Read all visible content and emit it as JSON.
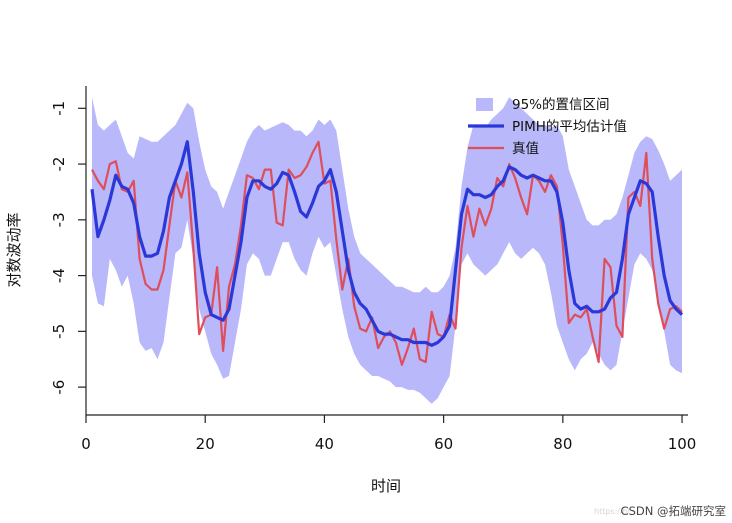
{
  "chart_data": {
    "type": "line",
    "xlabel": "时间",
    "ylabel": "对数波动率",
    "xlim": [
      0,
      101
    ],
    "ylim": [
      -6.5,
      -0.6
    ],
    "x_ticks": [
      0,
      20,
      40,
      60,
      80,
      100
    ],
    "y_ticks": [
      -1,
      -2,
      -3,
      -4,
      -5,
      -6
    ],
    "legend": {
      "position": "top-right",
      "entries": [
        "95%的置信区间",
        "PIMH的平均估计值",
        "真值"
      ]
    },
    "grid": false,
    "colors": {
      "band": "#b8b8fb",
      "mean": "#2b38d8",
      "truth": "#df4e5b"
    },
    "x": [
      1,
      2,
      3,
      4,
      5,
      6,
      7,
      8,
      9,
      10,
      11,
      12,
      13,
      14,
      15,
      16,
      17,
      18,
      19,
      20,
      21,
      22,
      23,
      24,
      25,
      26,
      27,
      28,
      29,
      30,
      31,
      32,
      33,
      34,
      35,
      36,
      37,
      38,
      39,
      40,
      41,
      42,
      43,
      44,
      45,
      46,
      47,
      48,
      49,
      50,
      51,
      52,
      53,
      54,
      55,
      56,
      57,
      58,
      59,
      60,
      61,
      62,
      63,
      64,
      65,
      66,
      67,
      68,
      69,
      70,
      71,
      72,
      73,
      74,
      75,
      76,
      77,
      78,
      79,
      80,
      81,
      82,
      83,
      84,
      85,
      86,
      87,
      88,
      89,
      90,
      91,
      92,
      93,
      94,
      95,
      96,
      97,
      98,
      99,
      100
    ],
    "series": [
      {
        "name": "95%的置信区间",
        "type": "band",
        "upper": [
          -0.8,
          -1.3,
          -1.4,
          -1.3,
          -1.2,
          -1.5,
          -1.8,
          -1.9,
          -1.5,
          -1.55,
          -1.6,
          -1.6,
          -1.5,
          -1.4,
          -1.3,
          -1.1,
          -0.9,
          -1.0,
          -1.6,
          -2.1,
          -2.4,
          -2.5,
          -2.8,
          -2.5,
          -2.2,
          -1.9,
          -1.6,
          -1.4,
          -1.3,
          -1.4,
          -1.35,
          -1.3,
          -1.25,
          -1.3,
          -1.4,
          -1.4,
          -1.5,
          -1.4,
          -1.2,
          -1.3,
          -1.2,
          -1.4,
          -2.1,
          -2.8,
          -3.3,
          -3.6,
          -3.7,
          -3.8,
          -3.9,
          -4.0,
          -4.1,
          -4.2,
          -4.2,
          -4.25,
          -4.3,
          -4.3,
          -4.2,
          -4.3,
          -4.3,
          -4.2,
          -4.0,
          -3.5,
          -2.4,
          -1.7,
          -1.3,
          -1.3,
          -1.35,
          -1.2,
          -1.1,
          -1.0,
          -0.8,
          -0.9,
          -1.0,
          -1.1,
          -1.2,
          -1.3,
          -1.3,
          -1.35,
          -1.3,
          -1.5,
          -2.1,
          -2.4,
          -2.7,
          -3.0,
          -3.1,
          -3.1,
          -3.0,
          -3.0,
          -2.9,
          -2.6,
          -2.2,
          -1.8,
          -1.6,
          -1.5,
          -1.55,
          -1.75,
          -2.0,
          -2.3,
          -2.2,
          -2.1
        ],
        "lower": [
          -4.0,
          -4.5,
          -4.55,
          -3.7,
          -3.9,
          -4.2,
          -4.0,
          -4.5,
          -5.2,
          -5.35,
          -5.3,
          -5.5,
          -5.2,
          -4.4,
          -3.6,
          -3.5,
          -3.0,
          -3.7,
          -4.6,
          -5.0,
          -5.4,
          -5.6,
          -5.85,
          -5.8,
          -5.2,
          -4.6,
          -3.8,
          -3.6,
          -3.7,
          -4.0,
          -4.0,
          -3.7,
          -3.4,
          -3.4,
          -3.7,
          -3.9,
          -4.0,
          -3.6,
          -3.3,
          -3.5,
          -3.4,
          -4.0,
          -4.6,
          -5.1,
          -5.4,
          -5.6,
          -5.7,
          -5.8,
          -5.8,
          -5.85,
          -5.9,
          -6.0,
          -6.0,
          -6.05,
          -6.05,
          -6.1,
          -6.2,
          -6.3,
          -6.2,
          -6.0,
          -5.8,
          -4.9,
          -3.8,
          -3.6,
          -3.8,
          -3.9,
          -4.0,
          -3.9,
          -3.8,
          -3.6,
          -3.4,
          -3.6,
          -3.7,
          -3.6,
          -3.5,
          -3.6,
          -3.8,
          -4.3,
          -4.9,
          -5.2,
          -5.5,
          -5.7,
          -5.5,
          -5.4,
          -5.2,
          -5.4,
          -5.6,
          -5.7,
          -5.6,
          -5.0,
          -4.4,
          -3.8,
          -3.6,
          -3.7,
          -3.9,
          -4.4,
          -5.0,
          -5.6,
          -5.7,
          -5.75
        ]
      },
      {
        "name": "PIMH的平均估计值",
        "values": [
          -2.45,
          -3.3,
          -3.0,
          -2.65,
          -2.2,
          -2.4,
          -2.45,
          -2.7,
          -3.3,
          -3.65,
          -3.65,
          -3.6,
          -3.2,
          -2.6,
          -2.3,
          -2.0,
          -1.6,
          -2.5,
          -3.6,
          -4.3,
          -4.7,
          -4.75,
          -4.8,
          -4.6,
          -4.0,
          -3.4,
          -2.6,
          -2.3,
          -2.3,
          -2.4,
          -2.45,
          -2.35,
          -2.15,
          -2.2,
          -2.5,
          -2.85,
          -2.95,
          -2.7,
          -2.4,
          -2.3,
          -2.1,
          -2.5,
          -3.2,
          -3.9,
          -4.3,
          -4.5,
          -4.6,
          -4.8,
          -5.0,
          -5.05,
          -5.05,
          -5.1,
          -5.15,
          -5.15,
          -5.2,
          -5.2,
          -5.2,
          -5.25,
          -5.2,
          -5.1,
          -4.9,
          -3.9,
          -2.9,
          -2.45,
          -2.55,
          -2.55,
          -2.6,
          -2.55,
          -2.4,
          -2.3,
          -2.05,
          -2.1,
          -2.2,
          -2.25,
          -2.2,
          -2.25,
          -2.3,
          -2.3,
          -2.5,
          -3.05,
          -3.9,
          -4.5,
          -4.6,
          -4.55,
          -4.65,
          -4.65,
          -4.6,
          -4.4,
          -4.3,
          -3.7,
          -2.9,
          -2.6,
          -2.3,
          -2.35,
          -2.5,
          -3.3,
          -4.0,
          -4.45,
          -4.6,
          -4.7
        ]
      },
      {
        "name": "真值",
        "values": [
          -2.1,
          -2.3,
          -2.45,
          -2.0,
          -1.95,
          -2.45,
          -2.5,
          -2.3,
          -3.7,
          -4.15,
          -4.25,
          -4.25,
          -3.9,
          -3.1,
          -2.3,
          -2.6,
          -2.15,
          -3.5,
          -5.05,
          -4.75,
          -4.7,
          -3.85,
          -5.35,
          -4.2,
          -3.8,
          -3.1,
          -2.2,
          -2.25,
          -2.45,
          -2.1,
          -2.1,
          -3.05,
          -3.1,
          -2.1,
          -2.25,
          -2.2,
          -2.05,
          -1.8,
          -1.6,
          -2.35,
          -2.3,
          -3.35,
          -4.25,
          -3.7,
          -4.55,
          -4.95,
          -5.0,
          -4.75,
          -5.3,
          -5.1,
          -5.0,
          -5.2,
          -5.6,
          -5.3,
          -4.95,
          -5.5,
          -5.55,
          -4.65,
          -5.05,
          -5.1,
          -4.7,
          -4.95,
          -3.5,
          -2.75,
          -3.3,
          -2.8,
          -3.1,
          -2.8,
          -2.25,
          -2.4,
          -2.0,
          -2.25,
          -2.6,
          -2.9,
          -2.2,
          -2.3,
          -2.5,
          -2.2,
          -2.4,
          -3.45,
          -4.85,
          -4.7,
          -4.75,
          -4.6,
          -5.1,
          -5.55,
          -3.7,
          -3.85,
          -4.9,
          -5.1,
          -2.6,
          -2.5,
          -2.75,
          -1.8,
          -3.7,
          -4.5,
          -4.95,
          -4.6,
          -4.55,
          -4.65
        ]
      }
    ]
  },
  "watermark": {
    "text": "CSDN @拓端研究室",
    "faint_text": "https://bl..."
  }
}
